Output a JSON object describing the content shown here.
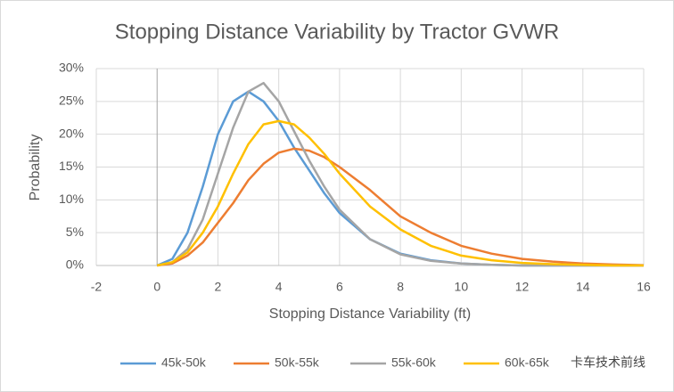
{
  "chart_data": {
    "type": "line",
    "title": "Stopping Distance Variability by Tractor GVWR",
    "x_label": "Stopping Distance Variability (ft)",
    "y_label": "Probability",
    "x": [
      0,
      0.5,
      1,
      1.5,
      2,
      2.5,
      3,
      3.5,
      4,
      4.5,
      5,
      5.5,
      6,
      7,
      8,
      9,
      10,
      11,
      12,
      13,
      14,
      15,
      16
    ],
    "series": [
      {
        "name": "45k-50k",
        "color": "#5b9bd5",
        "values": [
          0,
          1,
          5,
          12,
          20,
          25,
          26.5,
          25,
          22,
          18,
          14.5,
          11,
          8,
          4,
          1.8,
          0.8,
          0.3,
          0.1,
          0,
          0,
          0,
          0,
          0
        ]
      },
      {
        "name": "50k-55k",
        "color": "#ed7d31",
        "values": [
          0,
          0.3,
          1.5,
          3.5,
          6.5,
          9.5,
          13,
          15.5,
          17.2,
          17.8,
          17.5,
          16.5,
          15,
          11.5,
          7.5,
          5,
          3,
          1.8,
          1,
          0.6,
          0.3,
          0.15,
          0.05
        ]
      },
      {
        "name": "55k-60k",
        "color": "#a5a5a5",
        "values": [
          0,
          0.5,
          2.5,
          7,
          14,
          21,
          26.5,
          27.8,
          25,
          20.5,
          16,
          12,
          8.5,
          4,
          1.7,
          0.7,
          0.3,
          0.1,
          0,
          0,
          0,
          0,
          0
        ]
      },
      {
        "name": "60k-65k",
        "color": "#ffc000",
        "values": [
          0,
          0.5,
          2,
          5,
          9,
          14,
          18.5,
          21.5,
          22,
          21.5,
          19.5,
          17,
          14,
          9,
          5.5,
          3,
          1.5,
          0.8,
          0.4,
          0.2,
          0.1,
          0,
          0
        ]
      }
    ],
    "xlim": [
      -2,
      16
    ],
    "xticks": [
      -2,
      0,
      2,
      4,
      6,
      8,
      10,
      12,
      14,
      16
    ],
    "ylim": [
      0,
      30
    ],
    "yticks": [
      {
        "value": 0,
        "label": "0%"
      },
      {
        "value": 5,
        "label": "5%"
      },
      {
        "value": 10,
        "label": "10%"
      },
      {
        "value": 15,
        "label": "15%"
      },
      {
        "value": 20,
        "label": "20%"
      },
      {
        "value": 25,
        "label": "25%"
      },
      {
        "value": 30,
        "label": "30%"
      }
    ],
    "grid": true,
    "legend": "bottom",
    "watermark": "卡车技术前线"
  }
}
